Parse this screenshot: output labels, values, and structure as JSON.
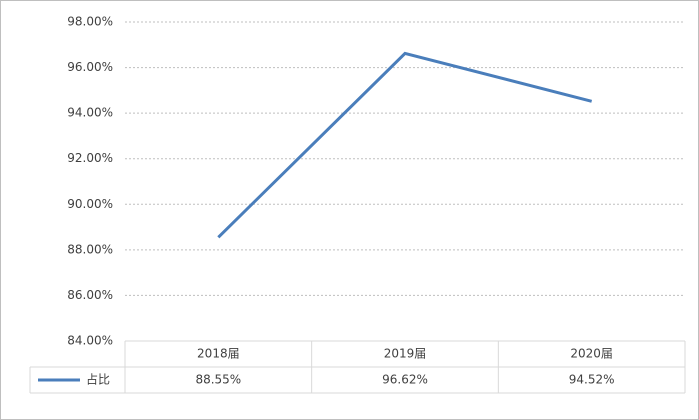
{
  "chart_data": {
    "type": "line",
    "categories": [
      "2018届",
      "2019届",
      "2020届"
    ],
    "series": [
      {
        "name": "占比",
        "color": "#4a7ebb",
        "values": [
          88.55,
          96.62,
          94.52
        ],
        "value_labels": [
          "88.55%",
          "96.62%",
          "94.52%"
        ]
      }
    ],
    "ylim": [
      84,
      98
    ],
    "yticks": [
      {
        "value": 84,
        "label": "84.00%"
      },
      {
        "value": 86,
        "label": "86.00%"
      },
      {
        "value": 88,
        "label": "88.00%"
      },
      {
        "value": 90,
        "label": "90.00%"
      },
      {
        "value": 92,
        "label": "92.00%"
      },
      {
        "value": 94,
        "label": "94.00%"
      },
      {
        "value": 96,
        "label": "96.00%"
      },
      {
        "value": 98,
        "label": "98.00%"
      }
    ],
    "grid": true
  }
}
